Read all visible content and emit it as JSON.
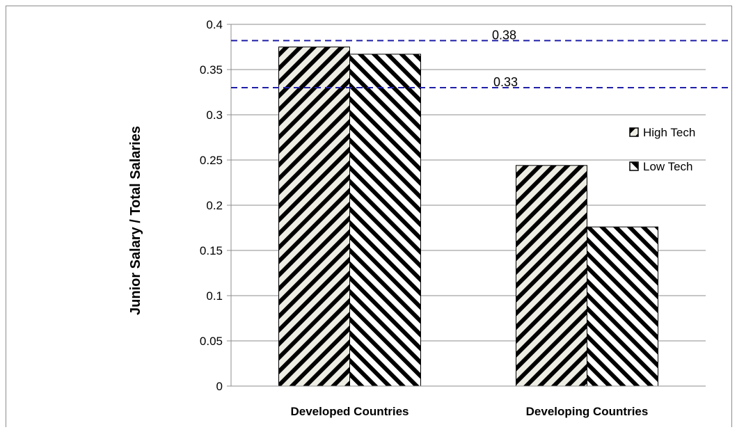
{
  "chart_data": {
    "type": "bar",
    "title": "",
    "xlabel": "",
    "ylabel": "Junior Salary / Total Salaries",
    "categories": [
      "Developed Countries",
      "Developing  Countries"
    ],
    "series": [
      {
        "name": "High Tech",
        "values": [
          0.375,
          0.244
        ],
        "pattern": "diagonal-up",
        "color": "#000000",
        "fill_color": "#eeede4"
      },
      {
        "name": "Low Tech",
        "values": [
          0.367,
          0.176
        ],
        "pattern": "diagonal-down",
        "color": "#000000",
        "fill_color": "#ffffff"
      }
    ],
    "ylim": [
      0,
      0.4
    ],
    "yticks": [
      0,
      0.05,
      0.1,
      0.15,
      0.2,
      0.25,
      0.3,
      0.35,
      0.4
    ],
    "ytick_labels": [
      "0",
      "0.05",
      "0.1",
      "0.15",
      "0.2",
      "0.25",
      "0.3",
      "0.35",
      "0.4"
    ],
    "grid": true,
    "legend_position": "right",
    "reference_lines": [
      {
        "value": 0.382,
        "label": "0.38",
        "color": "#1f1fa8",
        "style": "dashed"
      },
      {
        "value": 0.33,
        "label": "0.33",
        "color": "#1f1fa8",
        "style": "dashed"
      }
    ]
  }
}
